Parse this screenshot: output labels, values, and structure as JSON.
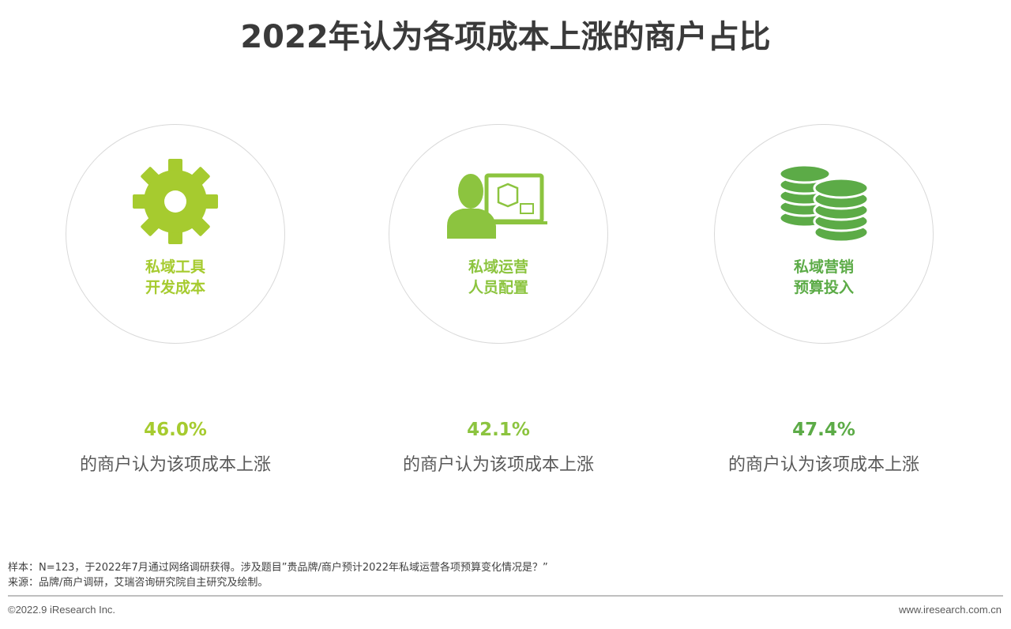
{
  "title": "2022年认为各项成本上涨的商户占比",
  "items": [
    {
      "icon": "gear-icon",
      "label1": "私域工具",
      "label2": "开发成本",
      "percent": "46.0%",
      "desc": "的商户认为该项成本上涨",
      "color": "#a6cb2f"
    },
    {
      "icon": "operator-computer-icon",
      "label1": "私域运营",
      "label2": "人员配置",
      "percent": "42.1%",
      "desc": "的商户认为该项成本上涨",
      "color": "#8cc43f"
    },
    {
      "icon": "coins-stack-icon",
      "label1": "私域营销",
      "label2": "预算投入",
      "percent": "47.4%",
      "desc": "的商户认为该项成本上涨",
      "color": "#5cab47"
    }
  ],
  "notes": {
    "sample": "样本：N=123，于2022年7月通过网络调研获得。涉及题目”贵品牌/商户预计2022年私域运营各项预算变化情况是？”",
    "source": "来源：品牌/商户调研，艾瑞咨询研究院自主研究及绘制。"
  },
  "footer": {
    "copyright": "©2022.9 iResearch Inc.",
    "website": "www.iresearch.com.cn"
  }
}
